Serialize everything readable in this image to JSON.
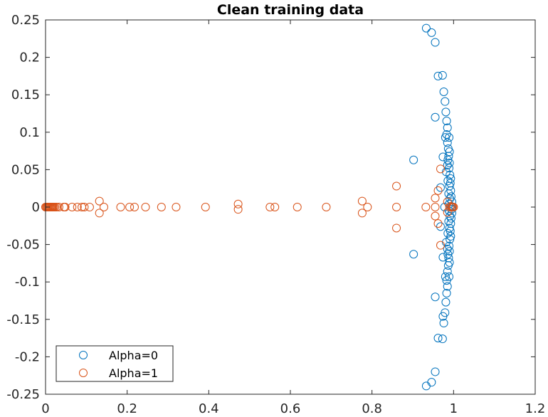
{
  "chart_data": {
    "type": "scatter",
    "title": "Clean training data",
    "xlabel": "",
    "ylabel": "",
    "xlim": [
      0,
      1.2
    ],
    "ylim": [
      -0.25,
      0.25
    ],
    "x_ticks": [
      0,
      0.2,
      0.4,
      0.6,
      0.8,
      1,
      1.2
    ],
    "x_tick_labels": [
      "0",
      "0.2",
      "0.4",
      "0.6",
      "0.8",
      "1",
      "1.2"
    ],
    "y_ticks": [
      0.25,
      0.2,
      0.15,
      0.1,
      0.05,
      0,
      -0.05,
      -0.1,
      -0.15,
      -0.2,
      -0.25
    ],
    "y_tick_labels": [
      "0.25",
      "0.2",
      "0.15",
      "0.1",
      "0.05",
      "0",
      "-0.05",
      "-0.1",
      "-0.15",
      "-0.2",
      "-0.25"
    ],
    "grid": false,
    "legend_position": "bottom-left",
    "marker": "open-circle",
    "series": [
      {
        "name": "Alpha=0",
        "color": "#0072BD",
        "points": [
          [
            0.933,
            0.239
          ],
          [
            0.946,
            0.233
          ],
          [
            0.955,
            0.22
          ],
          [
            0.962,
            0.175
          ],
          [
            0.973,
            0.176
          ],
          [
            0.976,
            0.154
          ],
          [
            0.979,
            0.141
          ],
          [
            0.981,
            0.127
          ],
          [
            0.955,
            0.12
          ],
          [
            0.983,
            0.115
          ],
          [
            0.985,
            0.106
          ],
          [
            0.983,
            0.097
          ],
          [
            0.98,
            0.093
          ],
          [
            0.989,
            0.093
          ],
          [
            0.985,
            0.086
          ],
          [
            0.987,
            0.078
          ],
          [
            0.99,
            0.074
          ],
          [
            0.988,
            0.068
          ],
          [
            0.974,
            0.067
          ],
          [
            0.986,
            0.063
          ],
          [
            0.902,
            0.063
          ],
          [
            0.99,
            0.059
          ],
          [
            0.985,
            0.056
          ],
          [
            0.989,
            0.052
          ],
          [
            0.982,
            0.047
          ],
          [
            0.991,
            0.043
          ],
          [
            0.993,
            0.038
          ],
          [
            0.986,
            0.035
          ],
          [
            0.992,
            0.032
          ],
          [
            0.99,
            0.028
          ],
          [
            0.968,
            0.026
          ],
          [
            0.993,
            0.022
          ],
          [
            0.988,
            0.018
          ],
          [
            0.994,
            0.014
          ],
          [
            0.991,
            0.011
          ],
          [
            0.996,
            0.007
          ],
          [
            0.989,
            0.004
          ],
          [
            0.995,
            0.0
          ],
          [
            0.978,
            0.0
          ],
          [
            0.995,
            -0.003
          ],
          [
            0.989,
            -0.005
          ],
          [
            0.996,
            -0.008
          ],
          [
            0.991,
            -0.012
          ],
          [
            0.994,
            -0.015
          ],
          [
            0.988,
            -0.019
          ],
          [
            0.993,
            -0.022
          ],
          [
            0.968,
            -0.026
          ],
          [
            0.99,
            -0.028
          ],
          [
            0.992,
            -0.032
          ],
          [
            0.986,
            -0.035
          ],
          [
            0.993,
            -0.039
          ],
          [
            0.991,
            -0.043
          ],
          [
            0.982,
            -0.047
          ],
          [
            0.989,
            -0.052
          ],
          [
            0.985,
            -0.056
          ],
          [
            0.99,
            -0.059
          ],
          [
            0.902,
            -0.063
          ],
          [
            0.986,
            -0.063
          ],
          [
            0.974,
            -0.067
          ],
          [
            0.988,
            -0.068
          ],
          [
            0.99,
            -0.074
          ],
          [
            0.987,
            -0.078
          ],
          [
            0.985,
            -0.086
          ],
          [
            0.98,
            -0.093
          ],
          [
            0.989,
            -0.093
          ],
          [
            0.983,
            -0.098
          ],
          [
            0.985,
            -0.106
          ],
          [
            0.983,
            -0.115
          ],
          [
            0.955,
            -0.12
          ],
          [
            0.981,
            -0.127
          ],
          [
            0.979,
            -0.141
          ],
          [
            0.974,
            -0.146
          ],
          [
            0.976,
            -0.155
          ],
          [
            0.962,
            -0.175
          ],
          [
            0.973,
            -0.176
          ],
          [
            0.955,
            -0.22
          ],
          [
            0.946,
            -0.234
          ],
          [
            0.933,
            -0.239
          ]
        ]
      },
      {
        "name": "Alpha=1",
        "color": "#D95319",
        "points": [
          [
            0.0,
            0.0
          ],
          [
            0.002,
            0.0
          ],
          [
            0.004,
            0.0
          ],
          [
            0.006,
            0.0
          ],
          [
            0.008,
            0.0
          ],
          [
            0.01,
            0.0
          ],
          [
            0.012,
            0.0
          ],
          [
            0.014,
            0.0
          ],
          [
            0.016,
            0.0
          ],
          [
            0.018,
            0.0
          ],
          [
            0.02,
            0.0
          ],
          [
            0.023,
            0.0
          ],
          [
            0.027,
            0.0
          ],
          [
            0.033,
            0.0
          ],
          [
            0.045,
            0.0
          ],
          [
            0.048,
            0.0
          ],
          [
            0.065,
            0.0
          ],
          [
            0.078,
            0.0
          ],
          [
            0.089,
            0.0
          ],
          [
            0.095,
            0.0
          ],
          [
            0.108,
            0.0
          ],
          [
            0.132,
            0.008
          ],
          [
            0.132,
            -0.008
          ],
          [
            0.143,
            0.0
          ],
          [
            0.184,
            0.0
          ],
          [
            0.206,
            0.0
          ],
          [
            0.218,
            0.0
          ],
          [
            0.245,
            0.0
          ],
          [
            0.284,
            0.0
          ],
          [
            0.32,
            0.0
          ],
          [
            0.392,
            0.0
          ],
          [
            0.472,
            0.004
          ],
          [
            0.472,
            -0.003
          ],
          [
            0.55,
            0.0
          ],
          [
            0.562,
            0.0
          ],
          [
            0.617,
            0.0
          ],
          [
            0.688,
            0.0
          ],
          [
            0.776,
            0.008
          ],
          [
            0.776,
            -0.008
          ],
          [
            0.789,
            0.0
          ],
          [
            0.86,
            0.028
          ],
          [
            0.86,
            -0.028
          ],
          [
            0.86,
            0.0
          ],
          [
            0.932,
            0.0
          ],
          [
            0.955,
            0.0
          ],
          [
            0.968,
            0.051
          ],
          [
            0.968,
            -0.051
          ],
          [
            0.962,
            0.022
          ],
          [
            0.962,
            -0.022
          ],
          [
            0.955,
            0.012
          ],
          [
            0.955,
            -0.012
          ],
          [
            0.985,
            0.007
          ],
          [
            0.985,
            -0.007
          ],
          [
            0.99,
            0.0
          ],
          [
            0.993,
            0.001
          ],
          [
            0.996,
            0.0
          ],
          [
            0.998,
            0.0
          ],
          [
            1.0,
            0.0
          ]
        ]
      }
    ]
  }
}
